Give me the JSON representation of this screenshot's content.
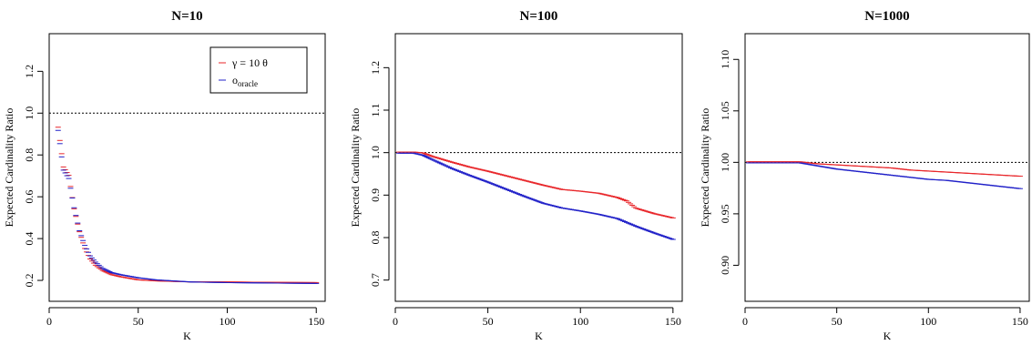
{
  "chart_data": [
    {
      "type": "line",
      "title": "N=10",
      "xlabel": "K",
      "ylabel": "Expected Cardinality Ratio",
      "xlim": [
        0,
        155
      ],
      "ylim": [
        0.1,
        1.38
      ],
      "xticks": [
        0,
        50,
        100,
        150
      ],
      "yticks": [
        0.2,
        0.4,
        0.6,
        0.8,
        1.0,
        1.2
      ],
      "ytick_labels": [
        "0.2",
        "0.4",
        "0.6",
        "0.8",
        "1.0",
        "1.2"
      ],
      "reference_line": 1.0,
      "legend": {
        "placement": "top-right",
        "entries": [
          "γ = 10 θ",
          "o_oracle"
        ]
      },
      "series": [
        {
          "name": "γ = 10 θ",
          "color": "#e8262a",
          "x": [
            5,
            8,
            11,
            14,
            17,
            20,
            23,
            26,
            30,
            35,
            40,
            50,
            60,
            80,
            100,
            125,
            150
          ],
          "values": [
            0.93,
            0.74,
            0.7,
            0.54,
            0.43,
            0.35,
            0.3,
            0.27,
            0.245,
            0.225,
            0.215,
            0.2,
            0.195,
            0.19,
            0.19,
            0.188,
            0.187
          ]
        },
        {
          "name": "o_oracle",
          "color": "#2020c8",
          "x": [
            5,
            8,
            11,
            14,
            17,
            20,
            23,
            26,
            30,
            35,
            40,
            50,
            60,
            80,
            100,
            125,
            150
          ],
          "values": [
            0.92,
            0.73,
            0.69,
            0.55,
            0.44,
            0.37,
            0.32,
            0.29,
            0.26,
            0.24,
            0.23,
            0.215,
            0.205,
            0.195,
            0.192,
            0.19,
            0.188
          ]
        }
      ]
    },
    {
      "type": "line",
      "title": "N=100",
      "xlabel": "K",
      "ylabel": "Expected Cardinality Ratio",
      "xlim": [
        0,
        155
      ],
      "ylim": [
        0.65,
        1.28
      ],
      "xticks": [
        0,
        50,
        100,
        150
      ],
      "yticks": [
        0.7,
        0.8,
        0.9,
        1.0,
        1.1,
        1.2
      ],
      "ytick_labels": [
        "0.7",
        "0.8",
        "0.9",
        "1.0",
        "1.1",
        "1.2"
      ],
      "reference_line": 1.0,
      "series": [
        {
          "name": "γ = 10 θ",
          "color": "#e8262a",
          "x": [
            2,
            10,
            15,
            20,
            30,
            40,
            50,
            60,
            70,
            80,
            90,
            100,
            110,
            115,
            120,
            125,
            130,
            140,
            150
          ],
          "values": [
            1.0,
            1.0,
            0.998,
            0.99,
            0.977,
            0.965,
            0.955,
            0.944,
            0.933,
            0.922,
            0.912,
            0.908,
            0.903,
            0.898,
            0.893,
            0.885,
            0.868,
            0.855,
            0.845
          ]
        },
        {
          "name": "o_oracle",
          "color": "#2020c8",
          "x": [
            2,
            10,
            15,
            20,
            30,
            40,
            50,
            60,
            70,
            80,
            90,
            100,
            110,
            120,
            130,
            140,
            150
          ],
          "values": [
            1.0,
            1.0,
            0.995,
            0.985,
            0.965,
            0.948,
            0.932,
            0.915,
            0.898,
            0.882,
            0.871,
            0.864,
            0.856,
            0.846,
            0.828,
            0.812,
            0.797
          ]
        }
      ]
    },
    {
      "type": "line",
      "title": "N=1000",
      "xlabel": "K",
      "ylabel": "Expected Cardinality Ratio",
      "xlim": [
        0,
        155
      ],
      "ylim": [
        0.865,
        1.125
      ],
      "xticks": [
        0,
        50,
        100,
        150
      ],
      "yticks": [
        0.9,
        0.95,
        1.0,
        1.05,
        1.1
      ],
      "ytick_labels": [
        "0.90",
        "0.95",
        "1.00",
        "1.05",
        "1.10"
      ],
      "reference_line": 1.0,
      "series": [
        {
          "name": "γ = 10 θ",
          "color": "#e8262a",
          "x": [
            2,
            10,
            20,
            30,
            40,
            50,
            60,
            70,
            80,
            90,
            100,
            110,
            120,
            130,
            140,
            150
          ],
          "values": [
            1.0,
            1.0,
            1.0,
            1.0,
            0.998,
            0.997,
            0.996,
            0.995,
            0.994,
            0.992,
            0.991,
            0.99,
            0.989,
            0.988,
            0.987,
            0.986
          ]
        },
        {
          "name": "o_oracle",
          "color": "#2020c8",
          "x": [
            2,
            10,
            20,
            30,
            40,
            50,
            60,
            70,
            80,
            90,
            100,
            110,
            120,
            130,
            140,
            150
          ],
          "values": [
            1.0,
            1.0,
            1.0,
            1.0,
            0.997,
            0.994,
            0.992,
            0.99,
            0.988,
            0.986,
            0.984,
            0.983,
            0.981,
            0.979,
            0.977,
            0.975
          ]
        }
      ]
    }
  ]
}
